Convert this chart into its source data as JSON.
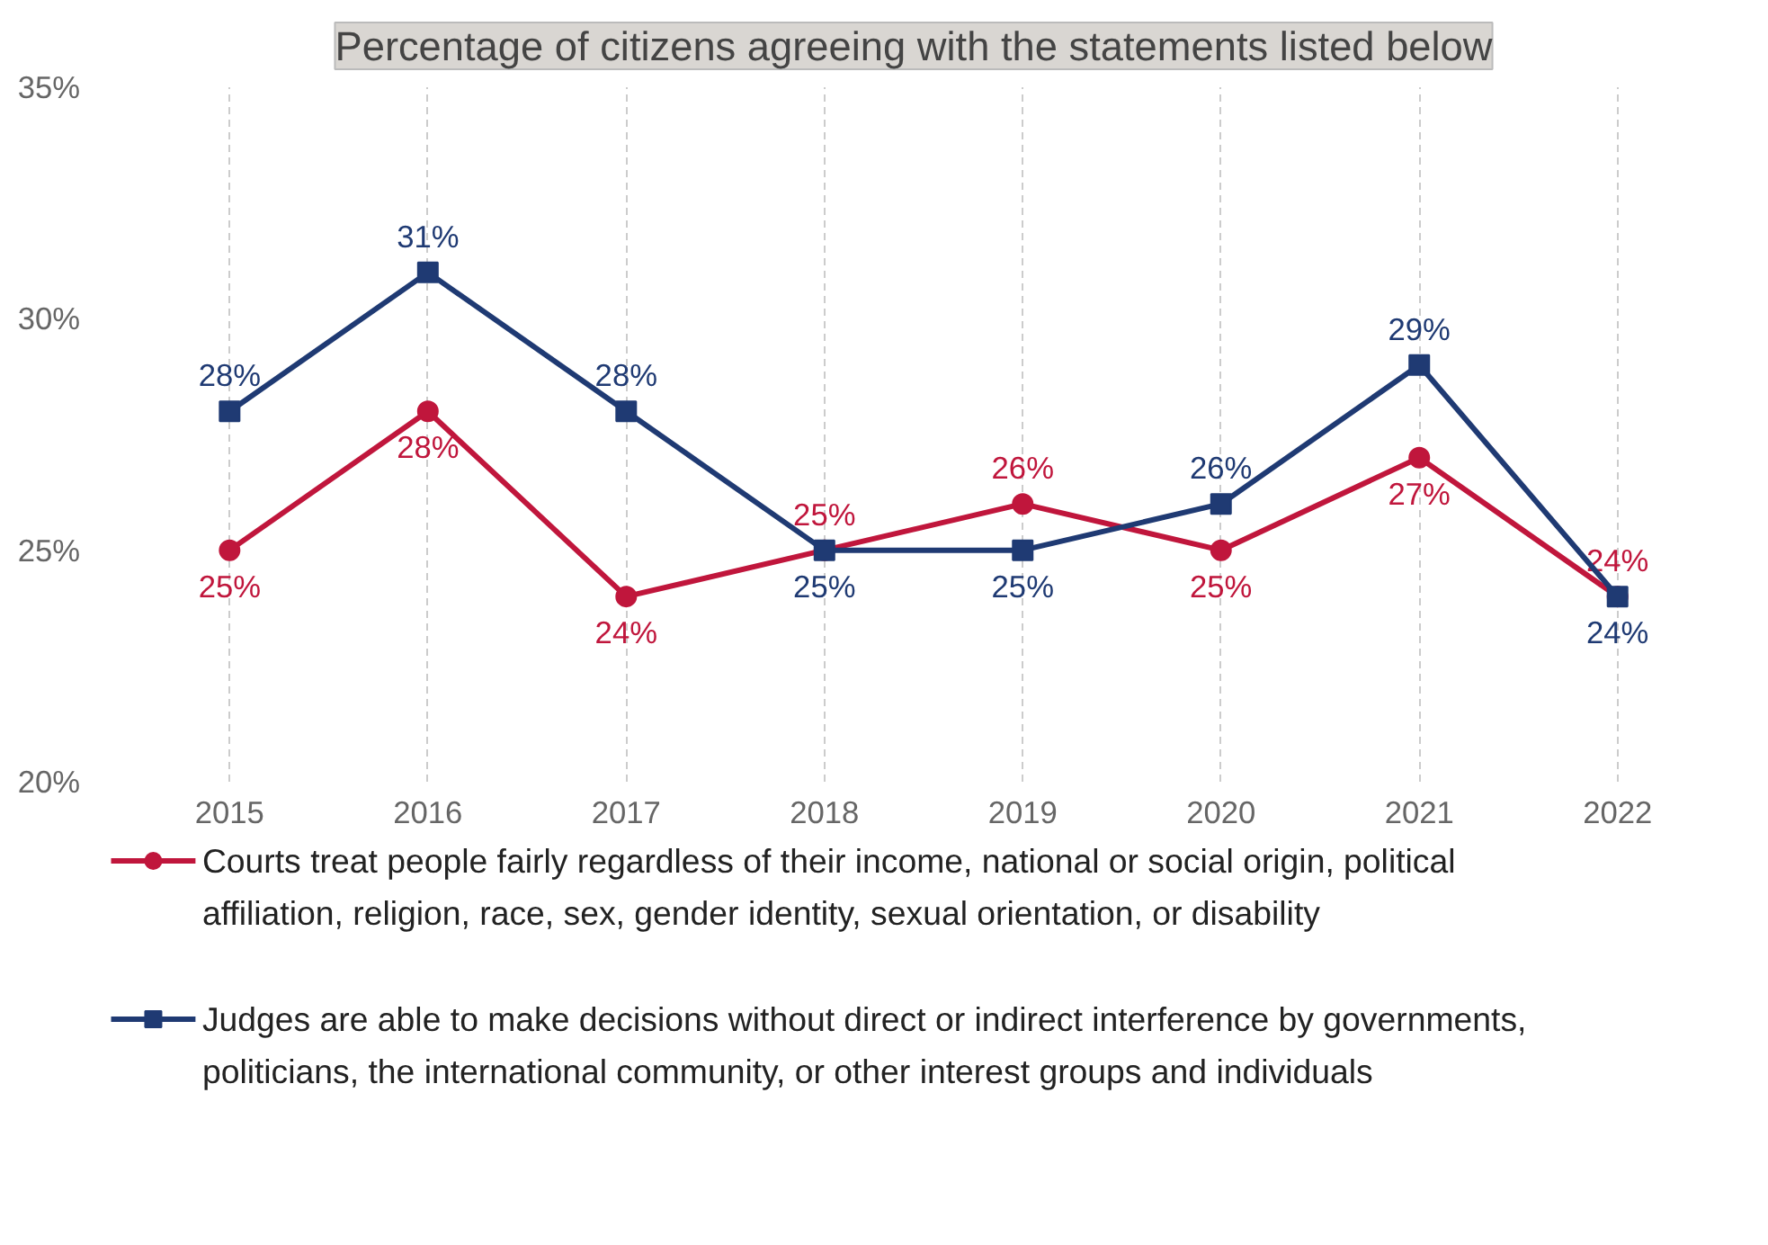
{
  "chart_data": {
    "type": "line",
    "title": "Percentage of citizens agreeing with the statements listed below",
    "categories": [
      "2015",
      "2016",
      "2017",
      "2018",
      "2019",
      "2020",
      "2021",
      "2022"
    ],
    "series": [
      {
        "name": "Courts treat people fairly regardless of their income, national or social origin, political affiliation, religion, race, sex, gender identity, sexual orientation, or disability",
        "color": "#c0163c",
        "marker": "circle",
        "values": [
          25,
          28,
          24,
          25,
          26,
          25,
          27,
          24
        ],
        "value_labels": [
          "25%",
          "28%",
          "24%",
          "25%",
          "26%",
          "25%",
          "27%",
          "24%"
        ]
      },
      {
        "name": "Judges are able to make decisions without direct or indirect interference by governments, politicians, the international community, or other interest groups and individuals",
        "color": "#1f3a73",
        "marker": "square",
        "values": [
          28,
          31,
          28,
          25,
          25,
          26,
          29,
          24
        ],
        "value_labels": [
          "28%",
          "31%",
          "28%",
          "25%",
          "25%",
          "26%",
          "29%",
          "24%"
        ]
      }
    ],
    "ylim": [
      20,
      35
    ],
    "yticks": [
      {
        "value": 20,
        "label": "20%"
      },
      {
        "value": 25,
        "label": "25%"
      },
      {
        "value": 30,
        "label": "30%"
      },
      {
        "value": 35,
        "label": "35%"
      }
    ],
    "grid": "x",
    "legend": "bottom",
    "line_style": "solid"
  }
}
